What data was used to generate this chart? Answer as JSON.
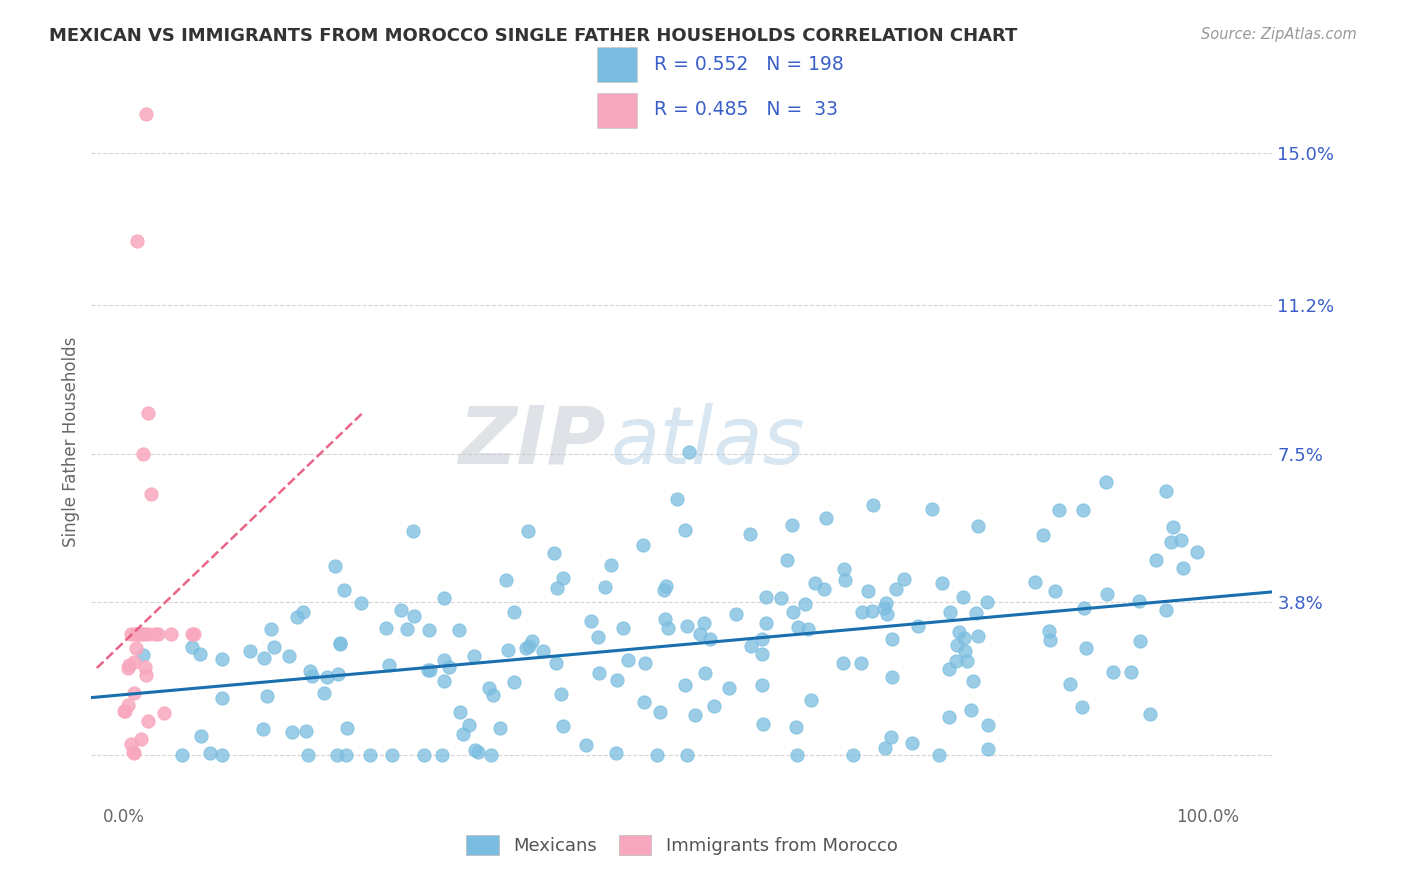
{
  "title": "MEXICAN VS IMMIGRANTS FROM MOROCCO SINGLE FATHER HOUSEHOLDS CORRELATION CHART",
  "source_text": "Source: ZipAtlas.com",
  "ylabel": "Single Father Households",
  "background_color": "#ffffff",
  "watermark_zip": "ZIP",
  "watermark_atlas": "atlas",
  "y_ticks": [
    0.0,
    0.038,
    0.075,
    0.112,
    0.15
  ],
  "y_tick_labels": [
    "",
    "3.8%",
    "7.5%",
    "11.2%",
    "15.0%"
  ],
  "x_ticks": [
    0.0,
    0.25,
    0.5,
    0.75,
    1.0
  ],
  "x_tick_labels": [
    "0.0%",
    "",
    "",
    "",
    "100.0%"
  ],
  "xlim": [
    -0.03,
    1.06
  ],
  "ylim": [
    -0.012,
    0.168
  ],
  "blue_R": 0.552,
  "blue_N": 198,
  "pink_R": 0.485,
  "pink_N": 33,
  "blue_color": "#7bbde0",
  "pink_color": "#f8a8be",
  "blue_line_color": "#1a6faf",
  "pink_line_color": "#e8557a",
  "grid_color": "#cccccc",
  "title_color": "#333333",
  "stat_color": "#3a5fc8",
  "legend_label_blue": "Mexicans",
  "legend_label_pink": "Immigrants from Morocco"
}
